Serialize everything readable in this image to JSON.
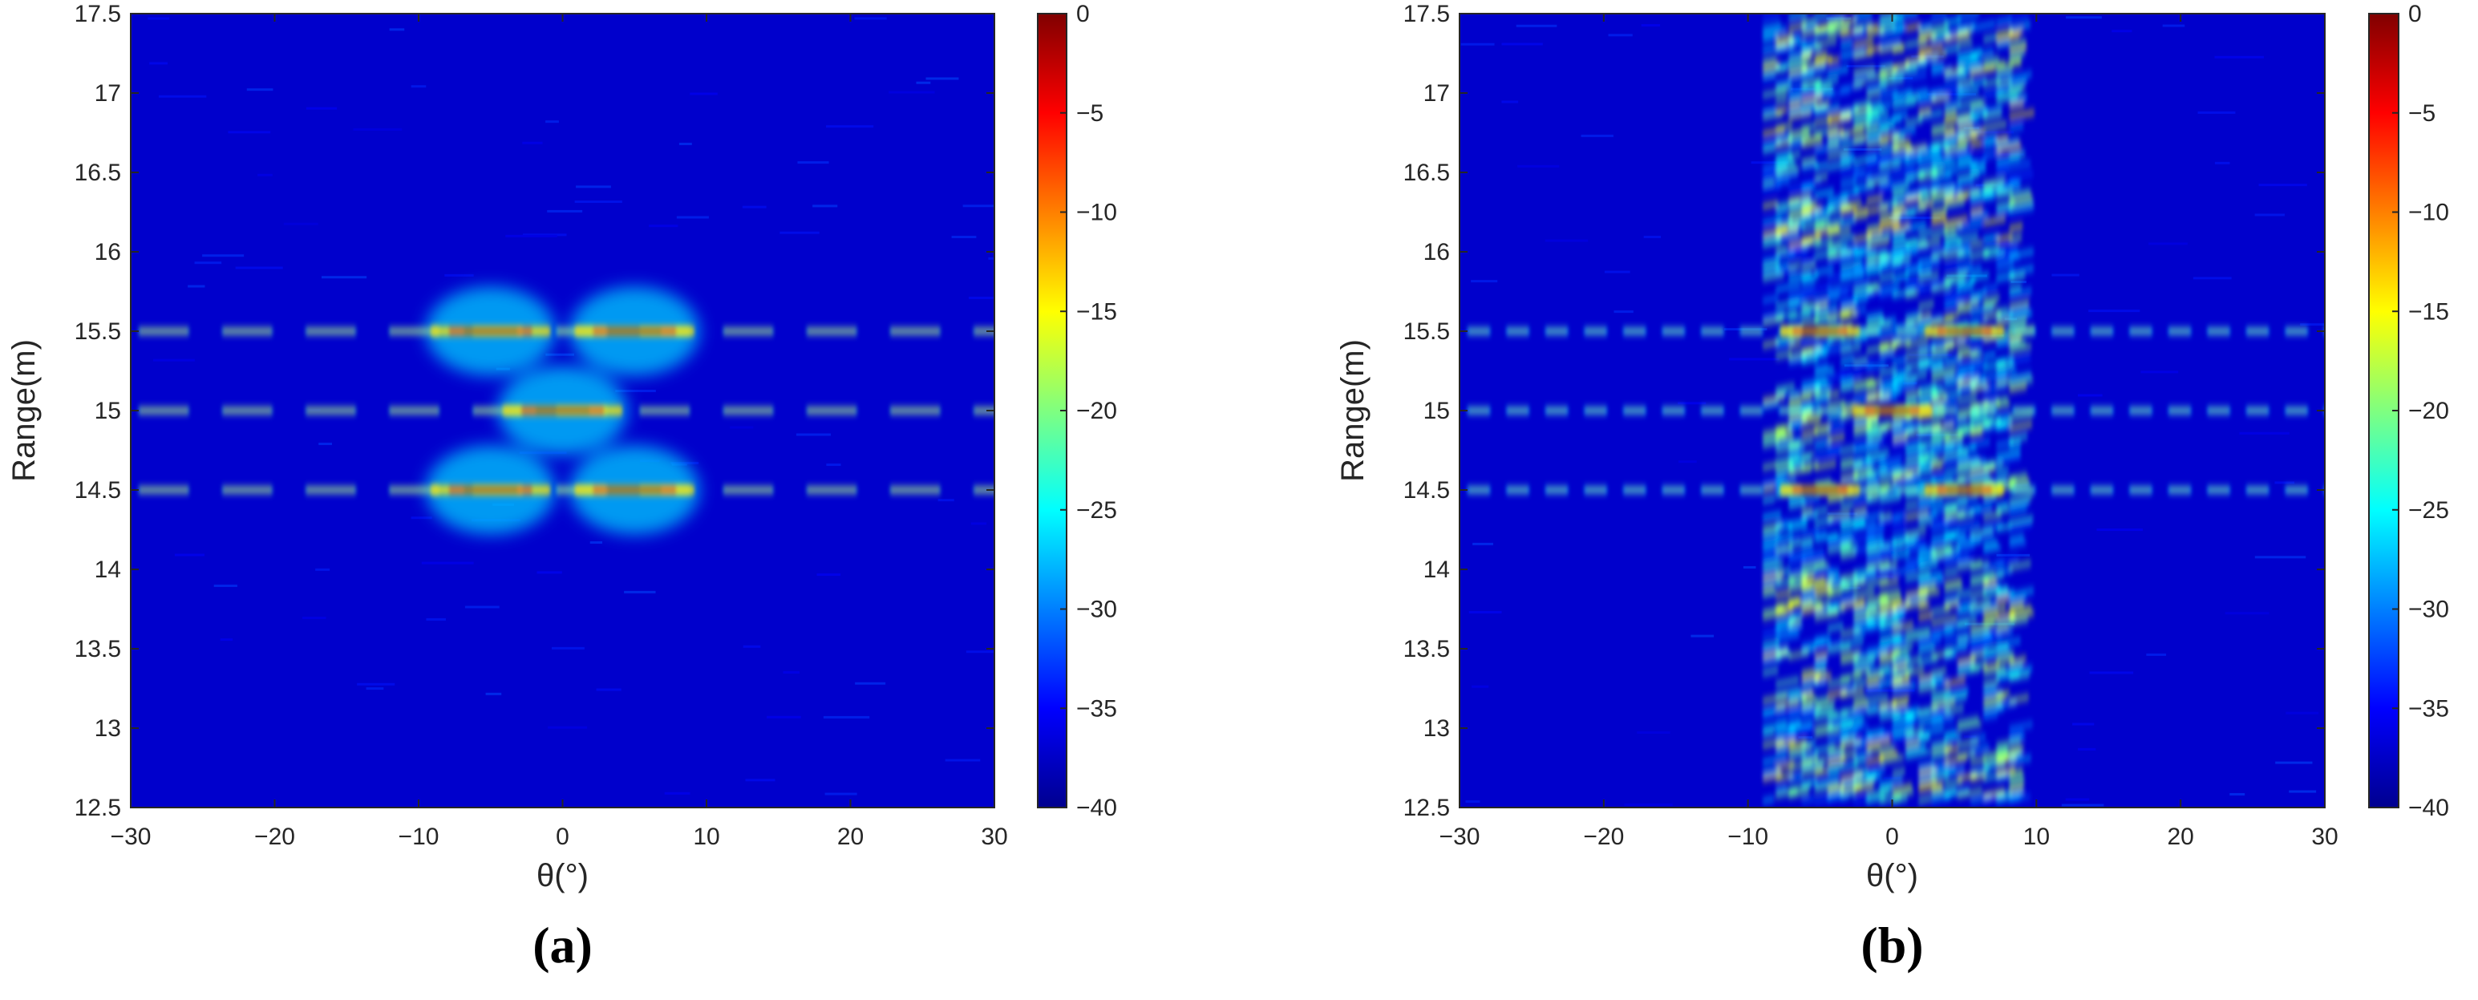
{
  "chart_data": [
    {
      "type": "heatmap",
      "panel_label": "(a)",
      "xlabel": "θ(°)",
      "ylabel": "Range(m)",
      "xlim": [
        -30,
        30
      ],
      "ylim": [
        12.5,
        17.5
      ],
      "x_ticks": [
        -30,
        -20,
        -10,
        0,
        10,
        20,
        30
      ],
      "x_tick_labels": [
        "−30",
        "−20",
        "−10",
        "0",
        "10",
        "20",
        "30"
      ],
      "y_ticks": [
        12.5,
        13,
        13.5,
        14,
        14.5,
        15,
        15.5,
        16,
        16.5,
        17,
        17.5
      ],
      "y_tick_labels": [
        "12.5",
        "13",
        "13.5",
        "14",
        "14.5",
        "15",
        "15.5",
        "16",
        "16.5",
        "17",
        "17.5"
      ],
      "colorbar": {
        "range": [
          -40,
          0
        ],
        "ticks": [
          0,
          -5,
          -10,
          -15,
          -20,
          -25,
          -30,
          -35,
          -40
        ],
        "tick_labels": [
          "0",
          "−5",
          "−10",
          "−15",
          "−20",
          "−25",
          "−30",
          "−35",
          "−40"
        ],
        "colormap": "jet"
      },
      "grid": false,
      "targets": [
        {
          "theta": -5,
          "range": 15.5,
          "peak_db": 0
        },
        {
          "theta": 5,
          "range": 15.5,
          "peak_db": 0
        },
        {
          "theta": 0,
          "range": 15.0,
          "peak_db": 0
        },
        {
          "theta": -5,
          "range": 14.5,
          "peak_db": 0
        },
        {
          "theta": 5,
          "range": 14.5,
          "peak_db": 0
        }
      ],
      "range_lines": [
        14.5,
        15.0,
        15.5
      ],
      "sidelobe_level_db": -22
    },
    {
      "type": "heatmap",
      "panel_label": "(b)",
      "xlabel": "θ(°)",
      "ylabel": "Range(m)",
      "xlim": [
        -30,
        30
      ],
      "ylim": [
        12.5,
        17.5
      ],
      "x_ticks": [
        -30,
        -20,
        -10,
        0,
        10,
        20,
        30
      ],
      "x_tick_labels": [
        "−30",
        "−20",
        "−10",
        "0",
        "10",
        "20",
        "30"
      ],
      "y_ticks": [
        12.5,
        13,
        13.5,
        14,
        14.5,
        15,
        15.5,
        16,
        16.5,
        17,
        17.5
      ],
      "y_tick_labels": [
        "12.5",
        "13",
        "13.5",
        "14",
        "14.5",
        "15",
        "15.5",
        "16",
        "16.5",
        "17",
        "17.5"
      ],
      "colorbar": {
        "range": [
          -40,
          0
        ],
        "ticks": [
          0,
          -5,
          -10,
          -15,
          -20,
          -25,
          -30,
          -35,
          -40
        ],
        "tick_labels": [
          "0",
          "−5",
          "−10",
          "−15",
          "−20",
          "−25",
          "−30",
          "−35",
          "−40"
        ],
        "colormap": "jet"
      },
      "grid": false,
      "targets": [
        {
          "theta": -5,
          "range": 15.5,
          "peak_db": 0
        },
        {
          "theta": 5,
          "range": 15.5,
          "peak_db": 0
        },
        {
          "theta": 0,
          "range": 15.0,
          "peak_db": 0
        },
        {
          "theta": -5,
          "range": 14.5,
          "peak_db": 0
        },
        {
          "theta": 5,
          "range": 14.5,
          "peak_db": 0
        }
      ],
      "range_lines": [
        14.5,
        15.0,
        15.5
      ],
      "sidelobe_level_db": -25,
      "clutter_band_theta": [
        -9,
        9
      ],
      "clutter_rows_range": [
        12.75,
        13.3,
        13.8,
        16.2,
        16.8,
        17.3
      ]
    }
  ]
}
